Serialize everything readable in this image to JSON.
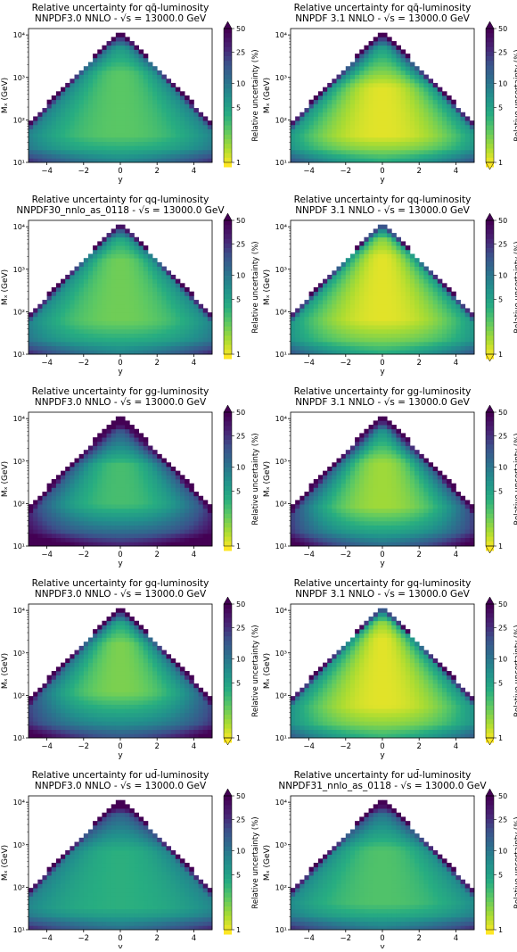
{
  "chart_data": [
    {
      "type": "heatmap",
      "title": [
        "Relative uncertainty for qq̄-luminosity",
        "NNPDF3.0 NNLO - √s = 13000.0 GeV"
      ],
      "xlabel": "y",
      "ylabel": "Mₓ (GeV)",
      "colorbar_label": "Relative uncertainty (%)",
      "x_ticks": [
        "−4",
        "−2",
        "0",
        "2",
        "4"
      ],
      "y_ticks": [
        "10¹",
        "10²",
        "10³",
        "10⁴"
      ],
      "cbar_ticks": [
        "50",
        "25",
        "10",
        "5",
        "1"
      ],
      "cbar_extend": "max",
      "xlim": [
        -5,
        5
      ],
      "ylim_log10": [
        1,
        4.15
      ],
      "profile": {
        "band_low": 1.45,
        "band_high": 3.3,
        "min_level": 0.26,
        "edge_level": 0.65
      }
    },
    {
      "type": "heatmap",
      "title": [
        "Relative uncertainty for qq̄-luminosity",
        "NNPDF 3.1 NNLO - √s = 13000.0 GeV"
      ],
      "xlabel": "y",
      "ylabel": "Mₓ (GeV)",
      "colorbar_label": "Relative uncertainty (%)",
      "x_ticks": [
        "−4",
        "−2",
        "0",
        "2",
        "4"
      ],
      "y_ticks": [
        "10¹",
        "10²",
        "10³",
        "10⁴"
      ],
      "cbar_ticks": [
        "50",
        "25",
        "10",
        "5",
        "1"
      ],
      "cbar_extend": "both",
      "xlim": [
        -5,
        5
      ],
      "ylim_log10": [
        1,
        4.15
      ],
      "profile": {
        "band_low": 1.55,
        "band_high": 2.85,
        "min_level": 0.04,
        "edge_level": 0.6
      }
    },
    {
      "type": "heatmap",
      "title": [
        "Relative uncertainty for qq-luminosity",
        "NNPDF30_nnlo_as_0118 - √s = 13000.0 GeV"
      ],
      "xlabel": "y",
      "ylabel": "Mₓ (GeV)",
      "colorbar_label": "Relative uncertainty (%)",
      "x_ticks": [
        "−4",
        "−2",
        "0",
        "2",
        "4"
      ],
      "y_ticks": [
        "10¹",
        "10²",
        "10³",
        "10⁴"
      ],
      "cbar_ticks": [
        "50",
        "25",
        "10",
        "5",
        "1"
      ],
      "cbar_extend": "max",
      "xlim": [
        -5,
        5
      ],
      "ylim_log10": [
        1,
        4.15
      ],
      "profile": {
        "band_low": 1.6,
        "band_high": 3.4,
        "min_level": 0.22,
        "edge_level": 0.62
      }
    },
    {
      "type": "heatmap",
      "title": [
        "Relative uncertainty for qq-luminosity",
        "NNPDF 3.1 NNLO - √s = 13000.0 GeV"
      ],
      "xlabel": "y",
      "ylabel": "Mₓ (GeV)",
      "colorbar_label": "Relative uncertainty (%)",
      "x_ticks": [
        "−4",
        "−2",
        "0",
        "2",
        "4"
      ],
      "y_ticks": [
        "10¹",
        "10²",
        "10³",
        "10⁴"
      ],
      "cbar_ticks": [
        "50",
        "25",
        "10",
        "5",
        "1"
      ],
      "cbar_extend": "both",
      "xlim": [
        -5,
        5
      ],
      "ylim_log10": [
        1,
        4.15
      ],
      "profile": {
        "band_low": 1.6,
        "band_high": 3.5,
        "min_level": 0.04,
        "edge_level": 0.55
      }
    },
    {
      "type": "heatmap",
      "title": [
        "Relative uncertainty for gg-luminosity",
        "NNPDF3.0 NNLO - √s = 13000.0 GeV"
      ],
      "xlabel": "y",
      "ylabel": "Mₓ (GeV)",
      "colorbar_label": "Relative uncertainty (%)",
      "x_ticks": [
        "−4",
        "−2",
        "0",
        "2",
        "4"
      ],
      "y_ticks": [
        "10¹",
        "10²",
        "10³",
        "10⁴"
      ],
      "cbar_ticks": [
        "50",
        "25",
        "10",
        "5",
        "1"
      ],
      "cbar_extend": "max",
      "xlim": [
        -5,
        5
      ],
      "ylim_log10": [
        1,
        4.15
      ],
      "profile": {
        "band_low": 2.0,
        "band_high": 2.9,
        "min_level": 0.3,
        "edge_level": 0.85
      }
    },
    {
      "type": "heatmap",
      "title": [
        "Relative uncertainty for gg-luminosity",
        "NNPDF 3.1 NNLO - √s = 13000.0 GeV"
      ],
      "xlabel": "y",
      "ylabel": "Mₓ (GeV)",
      "colorbar_label": "Relative uncertainty (%)",
      "x_ticks": [
        "−4",
        "−2",
        "0",
        "2",
        "4"
      ],
      "y_ticks": [
        "10¹",
        "10²",
        "10³",
        "10⁴"
      ],
      "cbar_ticks": [
        "50",
        "25",
        "10",
        "5",
        "1"
      ],
      "cbar_extend": "both",
      "xlim": [
        -5,
        5
      ],
      "ylim_log10": [
        1,
        4.15
      ],
      "profile": {
        "band_low": 1.9,
        "band_high": 3.0,
        "min_level": 0.14,
        "edge_level": 0.85
      }
    },
    {
      "type": "heatmap",
      "title": [
        "Relative uncertainty for gq-luminosity",
        "NNPDF3.0 NNLO - √s = 13000.0 GeV"
      ],
      "xlabel": "y",
      "ylabel": "Mₓ (GeV)",
      "colorbar_label": "Relative uncertainty (%)",
      "x_ticks": [
        "−4",
        "−2",
        "0",
        "2",
        "4"
      ],
      "y_ticks": [
        "10¹",
        "10²",
        "10³",
        "10⁴"
      ],
      "cbar_ticks": [
        "50",
        "25",
        "10",
        "5",
        "1"
      ],
      "cbar_extend": "both",
      "xlim": [
        -5,
        5
      ],
      "ylim_log10": [
        1,
        4.15
      ],
      "profile": {
        "band_low": 2.0,
        "band_high": 3.3,
        "min_level": 0.2,
        "edge_level": 0.75
      }
    },
    {
      "type": "heatmap",
      "title": [
        "Relative uncertainty for gq-luminosity",
        "NNPDF 3.1 NNLO - √s = 13000.0 GeV"
      ],
      "xlabel": "y",
      "ylabel": "Mₓ (GeV)",
      "colorbar_label": "Relative uncertainty (%)",
      "x_ticks": [
        "−4",
        "−2",
        "0",
        "2",
        "4"
      ],
      "y_ticks": [
        "10¹",
        "10²",
        "10³",
        "10⁴"
      ],
      "cbar_ticks": [
        "50",
        "25",
        "10",
        "5",
        "1"
      ],
      "cbar_extend": "both",
      "xlim": [
        -5,
        5
      ],
      "ylim_log10": [
        1,
        4.15
      ],
      "profile": {
        "band_low": 1.5,
        "band_high": 3.6,
        "min_level": 0.04,
        "edge_level": 0.6
      }
    },
    {
      "type": "heatmap",
      "title": [
        "Relative uncertainty for ud̄-luminosity",
        "NNPDF3.0 NNLO - √s = 13000.0 GeV"
      ],
      "xlabel": "y",
      "ylabel": "Mₓ (GeV)",
      "colorbar_label": "Relative uncertainty (%)",
      "x_ticks": [
        "−4",
        "−2",
        "0",
        "2",
        "4"
      ],
      "y_ticks": [
        "10¹",
        "10²",
        "10³",
        "10⁴"
      ],
      "cbar_ticks": [
        "50",
        "25",
        "10",
        "5",
        "1"
      ],
      "cbar_extend": "max",
      "xlim": [
        -5,
        5
      ],
      "ylim_log10": [
        1,
        4.15
      ],
      "profile": {
        "band_low": 1.4,
        "band_high": 3.0,
        "min_level": 0.36,
        "edge_level": 0.62
      }
    },
    {
      "type": "heatmap",
      "title": [
        "Relative uncertainty for ud̄-luminosity",
        "NNPDF31_nnlo_as_0118 - √s = 13000.0 GeV"
      ],
      "xlabel": "y",
      "ylabel": "Mₓ (GeV)",
      "colorbar_label": "Relative uncertainty (%)",
      "x_ticks": [
        "−4",
        "−2",
        "0",
        "2",
        "4"
      ],
      "y_ticks": [
        "10¹",
        "10²",
        "10³",
        "10⁴"
      ],
      "cbar_ticks": [
        "50",
        "25",
        "10",
        "5",
        "1"
      ],
      "cbar_extend": "max",
      "xlim": [
        -5,
        5
      ],
      "ylim_log10": [
        1,
        4.15
      ],
      "profile": {
        "band_low": 1.5,
        "band_high": 3.0,
        "min_level": 0.28,
        "edge_level": 0.6
      }
    }
  ],
  "colors": {
    "viridis_yellow": "#fde725",
    "viridis_green": "#5ec962",
    "viridis_teal": "#21918c",
    "viridis_blue": "#3b528b",
    "viridis_purple": "#440154"
  }
}
